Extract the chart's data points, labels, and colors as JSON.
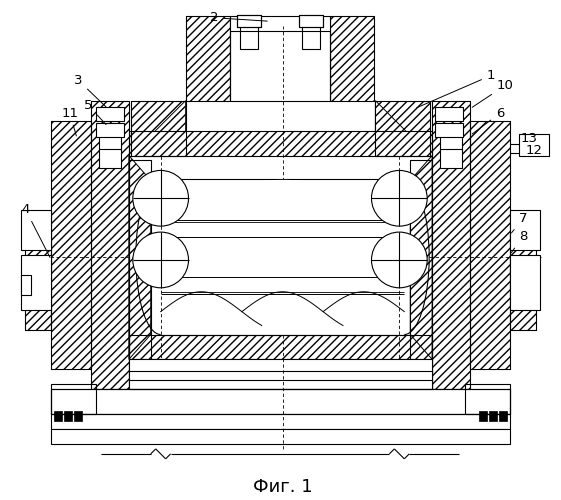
{
  "title": "Фиг. 1",
  "background_color": "#ffffff",
  "figsize": [
    5.61,
    5.0
  ],
  "dpi": 100,
  "labels": [
    "1",
    "2",
    "3",
    "4",
    "5",
    "6",
    "7",
    "8",
    "10",
    "11",
    "12",
    "13"
  ]
}
